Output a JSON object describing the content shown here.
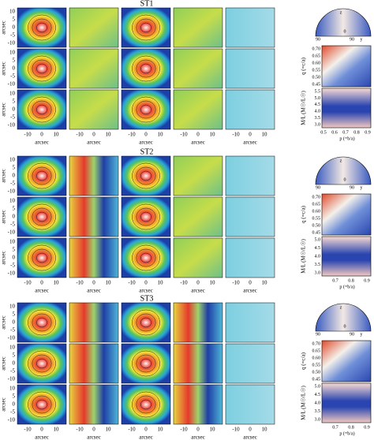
{
  "figure": {
    "panels": [
      {
        "title": "ST1",
        "x_label": "arcsec",
        "y_label": "arcsec",
        "x_ticks": [
          "-10",
          "0",
          "10"
        ],
        "y_ticks": [
          "10",
          "5",
          "0",
          "-5",
          "-10"
        ],
        "polar_labels": [
          "90",
          "z",
          "0",
          "y",
          "90"
        ],
        "q_label": "q (=c/a)",
        "q_ticks": [
          "0.70",
          "0.65",
          "0.60",
          "0.55",
          "0.50",
          "0.45"
        ],
        "ml_label": "M/L (M☉/L☉)",
        "ml_ticks": [
          "5.5",
          "5.0",
          "4.5",
          "4.0",
          "3.5",
          "3.0"
        ],
        "p_label": "p (=b/a)",
        "p_ticks": [
          "0.5",
          "0.6",
          "0.7",
          "0.8",
          "0.9"
        ]
      },
      {
        "title": "ST2",
        "x_label": "arcsec",
        "y_label": "arcsec",
        "x_ticks": [
          "-10",
          "0",
          "10"
        ],
        "y_ticks": [
          "10",
          "5",
          "0",
          "-5",
          "-10"
        ],
        "polar_labels": [
          "90",
          "z",
          "0",
          "y",
          "90"
        ],
        "q_label": "q (=c/a)",
        "q_ticks": [
          "0.70",
          "0.65",
          "0.60",
          "0.55",
          "0.50",
          "0.45"
        ],
        "ml_label": "M/L (M☉/L☉)",
        "ml_ticks": [
          "5.0",
          "4.5",
          "4.0",
          "3.5",
          "3.0"
        ],
        "p_label": "p (=b/a)",
        "p_ticks": [
          "0.7",
          "0.8",
          "0.9"
        ]
      },
      {
        "title": "ST3",
        "x_label": "arcsec",
        "y_label": "arcsec",
        "x_ticks": [
          "-10",
          "0",
          "10"
        ],
        "y_ticks": [
          "10",
          "5",
          "0",
          "-5",
          "-10"
        ],
        "polar_labels": [
          "90",
          "z",
          "0",
          "y",
          "90"
        ],
        "q_label": "q (=c/a)",
        "q_ticks": [
          "0.70",
          "0.65",
          "0.60",
          "0.55",
          "0.50",
          "0.45"
        ],
        "ml_label": "M/L (M☉/L☉)",
        "ml_ticks": [
          "5.0",
          "4.5",
          "4.0",
          "3.5",
          "3.0"
        ],
        "p_label": "p (=b/a)",
        "p_ticks": [
          "0.7",
          "0.8",
          "0.9"
        ]
      }
    ]
  }
}
